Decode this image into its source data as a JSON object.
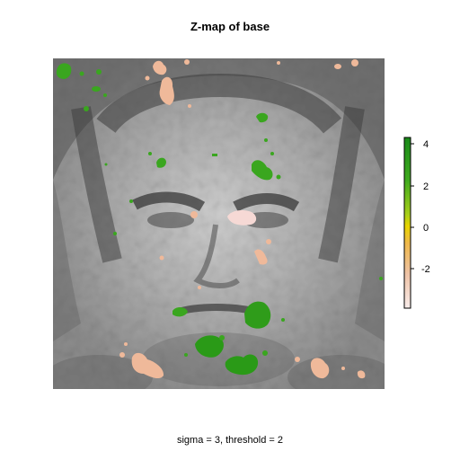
{
  "chart_data": {
    "type": "heatmap",
    "title": "Z-map of base",
    "caption": "sigma = 3, threshold = 2",
    "background": "grayscale face image (base)",
    "colorbar": {
      "ticks": [
        4,
        2,
        0,
        -2
      ],
      "range": [
        -3.9,
        4.4
      ],
      "colors": {
        "high": "#1a8a1a",
        "mid_high": "#7ac520",
        "zero": "#e8d400",
        "mid_low": "#ebb463",
        "low": "#f5e4e0"
      }
    },
    "positive_clusters": [
      {
        "label": "top-left",
        "z": 3.5
      },
      {
        "label": "left-eye-area",
        "z": 2.5
      },
      {
        "label": "right-eye-area",
        "z": 3.0
      },
      {
        "label": "right-cheek",
        "z": 3.0
      },
      {
        "label": "mouth-left",
        "z": 2.8
      },
      {
        "label": "mouth-right",
        "z": 3.8
      },
      {
        "label": "chin-left",
        "z": 4.0
      },
      {
        "label": "chin-right",
        "z": 4.2
      }
    ],
    "negative_clusters": [
      {
        "label": "top-center",
        "z": -2.3
      },
      {
        "label": "right-eye",
        "z": -3.8
      },
      {
        "label": "cheek-right",
        "z": -2.5
      },
      {
        "label": "nose",
        "z": -2.2
      },
      {
        "label": "bottom-left",
        "z": -2.6
      },
      {
        "label": "bottom-right",
        "z": -2.4
      },
      {
        "label": "top-right",
        "z": -2.2
      }
    ]
  }
}
